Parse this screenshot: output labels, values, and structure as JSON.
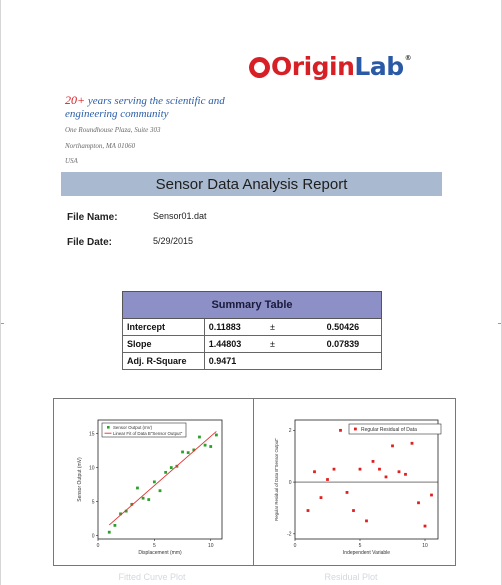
{
  "logo": {
    "origin": "Origin",
    "lab": "Lab",
    "reg": "®"
  },
  "tagline": {
    "num": "20+",
    "text": " years serving the scientific and engineering community"
  },
  "address": [
    "One Roundhouse Plaza, Suite 303",
    "Northampton, MA 01060",
    "USA"
  ],
  "title": "Sensor Data Analysis Report",
  "file_info": [
    {
      "label": "File Name:",
      "value": "Sensor01.dat"
    },
    {
      "label": "File Date:",
      "value": "5/29/2015"
    }
  ],
  "summary_table": {
    "title": "Summary Table",
    "rows": [
      {
        "label": "Intercept",
        "value": "0.11883",
        "pm": "±",
        "error": "0.50426"
      },
      {
        "label": "Slope",
        "value": "1.44803",
        "pm": "±",
        "error": "0.07839"
      },
      {
        "label": "Adj. R-Square",
        "value": "0.9471",
        "pm": "",
        "error": ""
      }
    ]
  },
  "colors": {
    "title_bar": "#a9b9cf",
    "table_header": "#8d8fc7",
    "scatter": "#2ca02c",
    "fit_line": "#e03030",
    "residual": "#e02020"
  },
  "captions": [
    "Fitted Curve Plot",
    "Residual Plot"
  ],
  "chart_data": [
    {
      "type": "scatter",
      "title": "",
      "xlabel": "Displacement (mm)",
      "ylabel": "Sensor Output (mV)",
      "xlim": [
        0,
        11
      ],
      "ylim": [
        -0.5,
        17
      ],
      "xticks": [
        0,
        5,
        10
      ],
      "yticks": [
        0,
        5,
        10,
        15
      ],
      "legend_position": "top-left",
      "series": [
        {
          "name": "Sensor Output (mV)",
          "kind": "points",
          "x": [
            1.0,
            1.5,
            2.0,
            2.5,
            3.0,
            3.5,
            4.0,
            4.5,
            5.0,
            5.5,
            6.0,
            6.5,
            7.0,
            7.5,
            8.0,
            8.5,
            9.0,
            9.5,
            10.0,
            10.5
          ],
          "y": [
            0.5,
            1.5,
            3.2,
            3.6,
            4.6,
            7.0,
            5.5,
            5.3,
            7.9,
            6.6,
            9.3,
            10.0,
            10.2,
            12.3,
            12.2,
            12.6,
            14.5,
            13.3,
            13.1,
            14.8
          ]
        },
        {
          "name": "Linear Fit of Data B\"Sensor Output\"",
          "kind": "line",
          "x": [
            1.0,
            10.5
          ],
          "y": [
            1.57,
            15.32
          ]
        }
      ]
    },
    {
      "type": "scatter",
      "title": "",
      "xlabel": "Independent Variable",
      "ylabel": "Regular Residual of Data B\"Sensor Output\"",
      "xlim": [
        0,
        11
      ],
      "ylim": [
        -2.2,
        2.4
      ],
      "xticks": [
        0,
        5,
        10
      ],
      "yticks": [
        -2,
        0,
        2
      ],
      "zero_line": true,
      "legend_position": "top-right",
      "series": [
        {
          "name": "Regular Residual of Data",
          "kind": "points",
          "x": [
            1.0,
            1.5,
            2.0,
            2.5,
            3.0,
            3.5,
            4.0,
            4.5,
            5.0,
            5.5,
            6.0,
            6.5,
            7.0,
            7.5,
            8.0,
            8.5,
            9.0,
            9.5,
            10.0,
            10.5
          ],
          "y": [
            -1.1,
            0.4,
            -0.6,
            0.1,
            0.5,
            2.0,
            -0.4,
            -1.1,
            0.5,
            -1.5,
            0.8,
            0.5,
            0.2,
            1.4,
            0.4,
            0.3,
            1.5,
            -0.8,
            -1.7,
            -0.5
          ]
        }
      ]
    }
  ]
}
